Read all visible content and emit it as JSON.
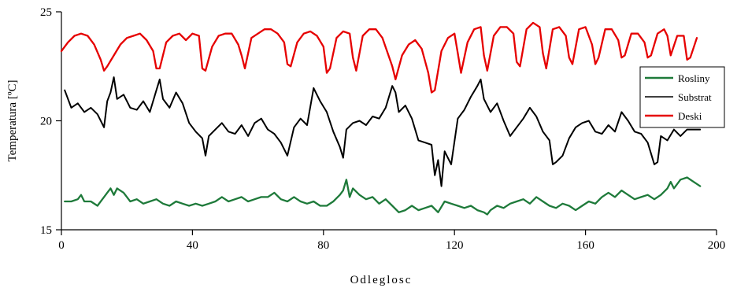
{
  "chart_data": {
    "type": "line",
    "title": "",
    "xlabel": "Odleglosc",
    "ylabel": "Temperatura [ºC]",
    "xlim": [
      0,
      200
    ],
    "ylim": [
      15,
      25
    ],
    "xticks": [
      0,
      40,
      80,
      120,
      160,
      200
    ],
    "yticks": [
      15,
      20,
      25
    ],
    "grid": false,
    "legend_position": "right",
    "series": [
      {
        "name": "Rosliny",
        "color": "#1e7a3a",
        "x": [
          1,
          3,
          5,
          6,
          7,
          9,
          11,
          13,
          14,
          15,
          16,
          17,
          19,
          21,
          23,
          25,
          27,
          29,
          31,
          33,
          35,
          37,
          39,
          41,
          43,
          45,
          47,
          49,
          51,
          53,
          55,
          57,
          59,
          61,
          63,
          65,
          67,
          69,
          71,
          73,
          75,
          77,
          79,
          81,
          83,
          85,
          86,
          87,
          88,
          89,
          91,
          93,
          95,
          97,
          99,
          101,
          103,
          105,
          107,
          109,
          111,
          113,
          115,
          117,
          119,
          121,
          123,
          125,
          127,
          129,
          130,
          131,
          133,
          135,
          137,
          139,
          141,
          143,
          145,
          147,
          149,
          151,
          153,
          155,
          157,
          159,
          161,
          163,
          165,
          167,
          169,
          171,
          173,
          175,
          177,
          179,
          181,
          183,
          185,
          186,
          187,
          189,
          191,
          193,
          195
        ],
        "y": [
          16.3,
          16.3,
          16.4,
          16.6,
          16.3,
          16.3,
          16.1,
          16.5,
          16.7,
          16.9,
          16.6,
          16.9,
          16.7,
          16.3,
          16.4,
          16.2,
          16.3,
          16.4,
          16.2,
          16.1,
          16.3,
          16.2,
          16.1,
          16.2,
          16.1,
          16.2,
          16.3,
          16.5,
          16.3,
          16.4,
          16.5,
          16.3,
          16.4,
          16.5,
          16.5,
          16.7,
          16.4,
          16.3,
          16.5,
          16.3,
          16.2,
          16.3,
          16.1,
          16.1,
          16.3,
          16.6,
          16.8,
          17.3,
          16.5,
          16.9,
          16.6,
          16.4,
          16.5,
          16.2,
          16.4,
          16.1,
          15.8,
          15.9,
          16.1,
          15.9,
          16.0,
          16.1,
          15.8,
          16.3,
          16.2,
          16.1,
          16.0,
          16.1,
          15.9,
          15.8,
          15.7,
          15.9,
          16.1,
          16.0,
          16.2,
          16.3,
          16.4,
          16.2,
          16.5,
          16.3,
          16.1,
          16.0,
          16.2,
          16.1,
          15.9,
          16.1,
          16.3,
          16.2,
          16.5,
          16.7,
          16.5,
          16.8,
          16.6,
          16.4,
          16.5,
          16.6,
          16.4,
          16.6,
          16.9,
          17.2,
          16.9,
          17.3,
          17.4,
          17.2,
          17.0
        ]
      },
      {
        "name": "Substrat",
        "color": "#000000",
        "x": [
          1,
          3,
          5,
          7,
          9,
          11,
          13,
          14,
          15,
          16,
          17,
          19,
          21,
          23,
          25,
          27,
          29,
          30,
          31,
          33,
          35,
          37,
          39,
          41,
          43,
          44,
          45,
          47,
          49,
          51,
          53,
          55,
          57,
          59,
          61,
          63,
          65,
          67,
          69,
          71,
          73,
          75,
          77,
          79,
          81,
          83,
          85,
          86,
          87,
          89,
          91,
          93,
          95,
          97,
          99,
          101,
          102,
          103,
          105,
          107,
          109,
          111,
          113,
          114,
          115,
          116,
          117,
          119,
          121,
          123,
          125,
          127,
          128,
          129,
          131,
          133,
          135,
          137,
          139,
          141,
          143,
          145,
          147,
          149,
          150,
          151,
          153,
          155,
          157,
          159,
          161,
          163,
          165,
          167,
          169,
          171,
          173,
          175,
          177,
          179,
          181,
          182,
          183,
          185,
          187,
          189,
          191,
          193,
          195
        ],
        "y": [
          21.4,
          20.6,
          20.8,
          20.4,
          20.6,
          20.3,
          19.7,
          20.9,
          21.3,
          22.0,
          21.0,
          21.2,
          20.6,
          20.5,
          20.9,
          20.4,
          21.4,
          21.9,
          21.0,
          20.6,
          21.3,
          20.8,
          19.9,
          19.5,
          19.2,
          18.4,
          19.3,
          19.6,
          19.9,
          19.5,
          19.4,
          19.8,
          19.3,
          19.9,
          20.1,
          19.6,
          19.4,
          19.0,
          18.4,
          19.7,
          20.1,
          19.8,
          21.5,
          20.9,
          20.4,
          19.5,
          18.8,
          18.3,
          19.6,
          19.9,
          20.0,
          19.8,
          20.2,
          20.1,
          20.6,
          21.6,
          21.3,
          20.4,
          20.7,
          20.1,
          19.1,
          19.0,
          18.9,
          17.5,
          18.2,
          17.0,
          18.6,
          18.0,
          20.1,
          20.5,
          21.1,
          21.6,
          21.9,
          21.0,
          20.4,
          20.8,
          20.0,
          19.3,
          19.7,
          20.1,
          20.6,
          20.2,
          19.5,
          19.1,
          18.0,
          18.1,
          18.4,
          19.2,
          19.7,
          19.9,
          20.0,
          19.5,
          19.4,
          19.8,
          19.5,
          20.4,
          20.0,
          19.5,
          19.4,
          19.0,
          18.0,
          18.1,
          19.3,
          19.1,
          19.6,
          19.3,
          19.6,
          19.6,
          19.6
        ]
      },
      {
        "name": "Deski",
        "color": "#e60000",
        "x": [
          0,
          2,
          4,
          6,
          8,
          10,
          12,
          13,
          14,
          16,
          18,
          20,
          22,
          24,
          26,
          28,
          29,
          30,
          32,
          34,
          36,
          38,
          40,
          42,
          43,
          44,
          46,
          48,
          50,
          52,
          54,
          55,
          56,
          58,
          60,
          62,
          64,
          66,
          68,
          69,
          70,
          72,
          74,
          76,
          78,
          80,
          81,
          82,
          84,
          86,
          88,
          89,
          90,
          92,
          94,
          96,
          98,
          101,
          102,
          104,
          106,
          108,
          110,
          112,
          113,
          114,
          116,
          118,
          120,
          121,
          122,
          124,
          126,
          128,
          129,
          130,
          132,
          134,
          136,
          138,
          139,
          140,
          142,
          144,
          146,
          147,
          148,
          150,
          152,
          154,
          155,
          156,
          158,
          160,
          162,
          163,
          164,
          166,
          168,
          170,
          171,
          172,
          174,
          176,
          178,
          179,
          180,
          182,
          184,
          185,
          186,
          188,
          190,
          191,
          192,
          194
        ],
        "y": [
          23.2,
          23.6,
          23.9,
          24.0,
          23.9,
          23.5,
          22.8,
          22.3,
          22.5,
          23.0,
          23.5,
          23.8,
          23.9,
          24.0,
          23.7,
          23.2,
          22.4,
          22.4,
          23.6,
          23.9,
          24.0,
          23.7,
          24.0,
          23.9,
          22.4,
          22.3,
          23.4,
          23.9,
          24.0,
          24.0,
          23.5,
          23.0,
          22.4,
          23.8,
          24.0,
          24.2,
          24.2,
          24.0,
          23.6,
          22.6,
          22.5,
          23.6,
          24.0,
          24.1,
          23.9,
          23.4,
          22.2,
          22.4,
          23.8,
          24.1,
          24.0,
          22.9,
          22.3,
          23.9,
          24.2,
          24.2,
          23.8,
          22.5,
          21.9,
          23.0,
          23.5,
          23.7,
          23.3,
          22.2,
          21.3,
          21.4,
          23.2,
          23.8,
          24.0,
          23.1,
          22.2,
          23.6,
          24.2,
          24.3,
          23.0,
          22.3,
          23.9,
          24.3,
          24.3,
          24.0,
          22.7,
          22.5,
          24.2,
          24.5,
          24.3,
          23.1,
          22.4,
          24.2,
          24.3,
          23.9,
          22.9,
          22.6,
          24.2,
          24.3,
          23.5,
          22.6,
          22.9,
          24.2,
          24.2,
          23.7,
          22.9,
          23.0,
          24.0,
          24.0,
          23.6,
          22.9,
          23.0,
          24.0,
          24.2,
          23.9,
          23.0,
          23.9,
          23.9,
          22.8,
          22.9,
          23.8
        ]
      }
    ]
  }
}
